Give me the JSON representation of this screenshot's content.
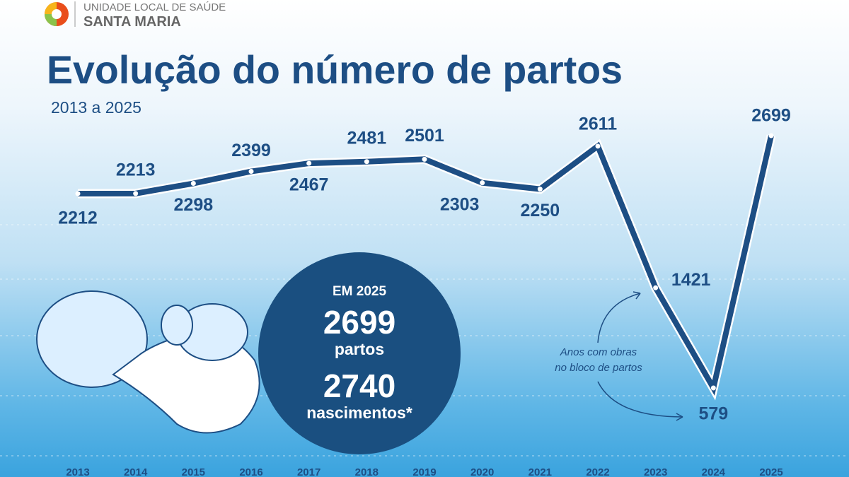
{
  "header": {
    "org_line1": "UNIDADE LOCAL DE SAÚDE",
    "org_line2": "SANTA MARIA"
  },
  "chart_data": {
    "type": "line",
    "title": "Evolução do número de partos",
    "subtitle": "2013 a 2025",
    "categories": [
      "2013",
      "2014",
      "2015",
      "2016",
      "2017",
      "2018",
      "2019",
      "2020",
      "2021",
      "2022",
      "2023",
      "2024",
      "2025"
    ],
    "series": [
      {
        "name": "Partos",
        "color": "#1d4e84",
        "values": [
          2212,
          2213,
          2298,
          2399,
          2467,
          2481,
          2501,
          2303,
          2250,
          2611,
          1421,
          579,
          2699
        ]
      }
    ],
    "annotation": {
      "line1": "Anos com obras",
      "line2": "no bloco de partos"
    }
  },
  "highlight": {
    "heading": "EM 2025",
    "deliveries": {
      "value": 2699,
      "label": "partos"
    },
    "newborns": {
      "value": 2740,
      "label": "nascimentos*"
    }
  }
}
